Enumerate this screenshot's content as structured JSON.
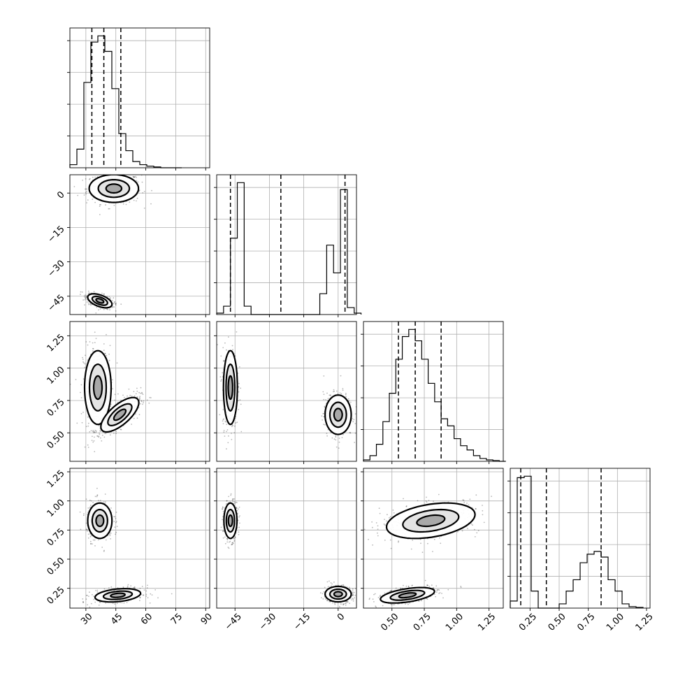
{
  "chart_data": {
    "type": "scatter",
    "title": "",
    "grid": true,
    "axes": [
      {
        "ticks": [
          30,
          45,
          60,
          75,
          90
        ],
        "tick_labels": [
          "30",
          "45",
          "60",
          "75",
          "90"
        ],
        "range": [
          22,
          92
        ]
      },
      {
        "ticks": [
          -45,
          -30,
          -15,
          0
        ],
        "tick_labels": [
          "−45",
          "−30",
          "−15",
          "0"
        ],
        "range": [
          -53,
          8
        ]
      },
      {
        "ticks": [
          0.5,
          0.75,
          1.0,
          1.25
        ],
        "tick_labels": [
          "0.50",
          "0.75",
          "1.00",
          "1.25"
        ],
        "range": [
          0.28,
          1.36
        ]
      },
      {
        "ticks": [
          0.25,
          0.5,
          0.75,
          1.0,
          1.25
        ],
        "tick_labels": [
          "0.25",
          "0.50",
          "0.75",
          "1.00",
          "1.25"
        ],
        "range": [
          0.08,
          1.28
        ]
      }
    ],
    "diagonals": [
      {
        "param": 0,
        "bin_edges": [
          22,
          25.5,
          29,
          32.5,
          36,
          39.5,
          43,
          46.5,
          50,
          53.5,
          57,
          60.5,
          64,
          67.5,
          71,
          74.5,
          78
        ],
        "counts": [
          2,
          12,
          55,
          81,
          85,
          75,
          51,
          22,
          11,
          4,
          2,
          1,
          0.5,
          0,
          0,
          0
        ],
        "quantiles": [
          33,
          39,
          47.5
        ]
      },
      {
        "param": 1,
        "bin_edges": [
          -53,
          -50,
          -47,
          -44,
          -41,
          -38,
          -35,
          -32,
          -29,
          -26,
          -23,
          -20,
          -17,
          -14,
          -11,
          -8,
          -5,
          -2,
          1,
          4,
          7,
          10
        ],
        "counts": [
          1,
          6,
          55,
          95,
          6,
          0,
          0,
          0,
          0,
          0,
          0,
          0,
          0,
          0,
          0,
          15,
          50,
          30,
          90,
          5,
          1
        ],
        "quantiles": [
          -47,
          -25,
          3
        ]
      },
      {
        "param": 2,
        "bin_edges": [
          0.28,
          0.33,
          0.38,
          0.43,
          0.48,
          0.53,
          0.58,
          0.63,
          0.68,
          0.73,
          0.78,
          0.83,
          0.88,
          0.93,
          0.98,
          1.03,
          1.08,
          1.13,
          1.18,
          1.23,
          1.28,
          1.33,
          1.38
        ],
        "counts": [
          1,
          4,
          12,
          28,
          48,
          72,
          88,
          93,
          85,
          72,
          55,
          42,
          30,
          25,
          16,
          11,
          8,
          4,
          2,
          1,
          0.5,
          0
        ],
        "quantiles": [
          0.55,
          0.68,
          0.88
        ]
      },
      {
        "param": 3,
        "bin_edges": [
          0.08,
          0.14,
          0.2,
          0.26,
          0.32,
          0.38,
          0.44,
          0.5,
          0.56,
          0.62,
          0.68,
          0.74,
          0.8,
          0.86,
          0.92,
          0.98,
          1.04,
          1.1,
          1.16,
          1.22
        ],
        "counts": [
          5,
          92,
          93,
          12,
          0,
          0,
          0,
          3,
          12,
          20,
          32,
          38,
          40,
          36,
          20,
          12,
          3,
          1,
          0.5
        ],
        "quantiles": [
          0.17,
          0.39,
          0.86
        ]
      }
    ],
    "clusters": {
      "0_1": [
        {
          "center": [
            44,
            2
          ],
          "sd": [
            6.5,
            3.2
          ],
          "rho": 0
        },
        {
          "center": [
            37,
            -47
          ],
          "sd": [
            3.2,
            1.6
          ],
          "rho": -0.5
        }
      ],
      "0_2": [
        {
          "center": [
            36,
            0.85
          ],
          "sd": [
            3.5,
            0.15
          ],
          "rho": 0
        },
        {
          "center": [
            47,
            0.64
          ],
          "sd": [
            5,
            0.07
          ],
          "rho": 0.7
        }
      ],
      "0_3": [
        {
          "center": [
            37,
            0.83
          ],
          "sd": [
            3.2,
            0.08
          ],
          "rho": 0
        },
        {
          "center": [
            46,
            0.19
          ],
          "sd": [
            6,
            0.03
          ],
          "rho": 0.3
        }
      ],
      "1_2": [
        {
          "center": [
            -47,
            0.85
          ],
          "sd": [
            1.6,
            0.15
          ],
          "rho": 0
        },
        {
          "center": [
            0,
            0.64
          ],
          "sd": [
            3,
            0.08
          ],
          "rho": 0
        }
      ],
      "1_3": [
        {
          "center": [
            -47,
            0.83
          ],
          "sd": [
            1.5,
            0.08
          ],
          "rho": 0
        },
        {
          "center": [
            0,
            0.2
          ],
          "sd": [
            3,
            0.035
          ],
          "rho": 0
        }
      ],
      "2_3": [
        {
          "center": [
            0.8,
            0.83
          ],
          "sd": [
            0.18,
            0.08
          ],
          "rho": 0.35
        },
        {
          "center": [
            0.62,
            0.19
          ],
          "sd": [
            0.11,
            0.035
          ],
          "rho": 0.5
        }
      ]
    }
  }
}
